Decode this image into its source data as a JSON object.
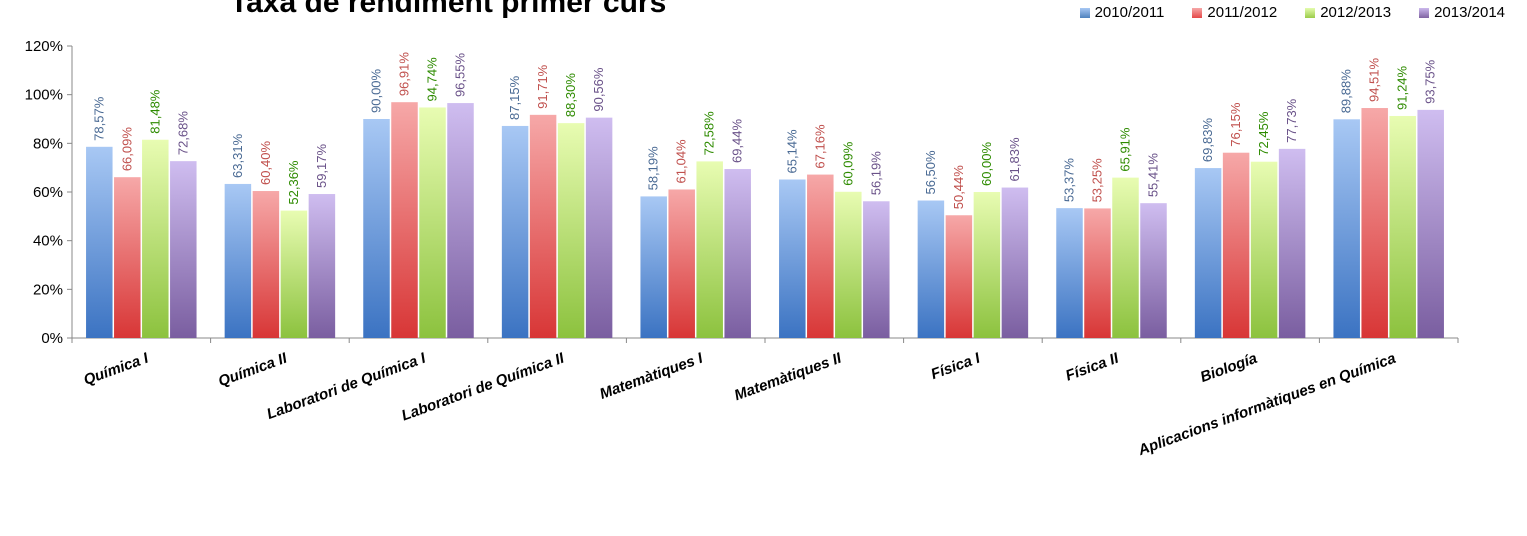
{
  "chart_data": {
    "type": "bar",
    "title": "Taxa de rendiment primer curs",
    "categories": [
      "Química I",
      "Química II",
      "Laboratori de Química I",
      "Laboratori de Química II",
      "Matemàtiques I",
      "Matemàtiques II",
      "Física I",
      "Física II",
      "Biología",
      "Aplicacions informàtiques en Química"
    ],
    "series": [
      {
        "name": "2010/2011",
        "color": "#4f81bd",
        "label_color": "#4a6a94",
        "values": [
          78.57,
          63.31,
          90.0,
          87.15,
          58.19,
          65.14,
          56.5,
          53.37,
          69.83,
          89.88
        ],
        "labels": [
          "78,57%",
          "63,31%",
          "90,00%",
          "87,15%",
          "58,19%",
          "65,14%",
          "56,50%",
          "53,37%",
          "69,83%",
          "89,88%"
        ]
      },
      {
        "name": "2011/2012",
        "color": "#e54848",
        "label_color": "#c0504d",
        "values": [
          66.09,
          60.4,
          96.91,
          91.71,
          61.04,
          67.16,
          50.44,
          53.25,
          76.15,
          94.51
        ],
        "labels": [
          "66,09%",
          "60,40%",
          "96,91%",
          "91,71%",
          "61,04%",
          "67,16%",
          "50,44%",
          "53,25%",
          "76,15%",
          "94,51%"
        ]
      },
      {
        "name": "2012/2013",
        "color": "#9bcc4a",
        "label_color": "#2e8b00",
        "values": [
          81.48,
          52.36,
          94.74,
          88.3,
          72.58,
          60.09,
          60.0,
          65.91,
          72.45,
          91.24
        ],
        "labels": [
          "81,48%",
          "52,36%",
          "94,74%",
          "88,30%",
          "72,58%",
          "60,09%",
          "60,00%",
          "65,91%",
          "72,45%",
          "91,24%"
        ]
      },
      {
        "name": "2013/2014",
        "color": "#8064a2",
        "label_color": "#6a5289",
        "values": [
          72.68,
          59.17,
          96.55,
          90.56,
          69.44,
          56.19,
          61.83,
          55.41,
          77.73,
          93.75
        ],
        "labels": [
          "72,68%",
          "59,17%",
          "96,55%",
          "90,56%",
          "69,44%",
          "56,19%",
          "61,83%",
          "55,41%",
          "77,73%",
          "93,75%"
        ]
      }
    ],
    "yticks": [
      "0%",
      "20%",
      "40%",
      "60%",
      "80%",
      "100%",
      "120%"
    ],
    "ylim": [
      0,
      120
    ],
    "xlabel": "",
    "ylabel": "",
    "grid": false,
    "legend_position": "top-right"
  }
}
